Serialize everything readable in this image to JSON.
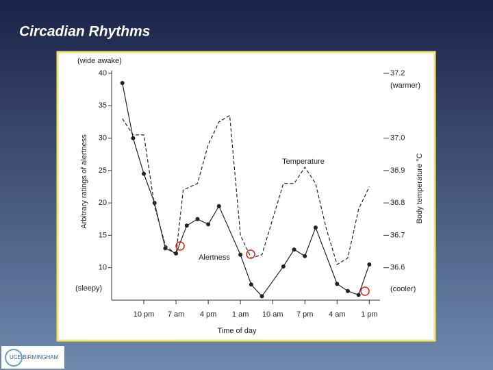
{
  "slide_title": "Circadian Rhythms",
  "logo": "UCE BIRMINGHAM",
  "chart_data": {
    "type": "line",
    "xlabel": "Time of day",
    "ylabel": "Arbitrary ratings of alertness",
    "y2label": "Body temperature °C",
    "annotations": [
      "(wide awake)",
      "(sleepy)",
      "(warmer)",
      "(cooler)"
    ],
    "xlim": [
      0,
      75
    ],
    "xticks": [
      {
        "value": 9,
        "label": "10 pm"
      },
      {
        "value": 18,
        "label": "7 am"
      },
      {
        "value": 27,
        "label": "4 pm"
      },
      {
        "value": 36,
        "label": "1 am"
      },
      {
        "value": 45,
        "label": "10 am"
      },
      {
        "value": 54,
        "label": "7 pm"
      },
      {
        "value": 63,
        "label": "4 am"
      },
      {
        "value": 72,
        "label": "1 pm"
      }
    ],
    "ylim": [
      5,
      40
    ],
    "yticks": [
      10,
      15,
      20,
      25,
      30,
      35,
      40
    ],
    "y2lim": [
      36.5,
      37.2
    ],
    "y2ticks": [
      36.6,
      36.7,
      36.8,
      36.9,
      {
        "value": 37,
        "label": "37.0"
      },
      37.2
    ],
    "series": [
      {
        "name": "Alertness",
        "color": "#222222",
        "dashed": false,
        "markers": true,
        "x": [
          3,
          6,
          9,
          12,
          15,
          18,
          21,
          24,
          27,
          30,
          36,
          39,
          42,
          48,
          51,
          54,
          57,
          63,
          66,
          69,
          72
        ],
        "values": [
          38.5,
          30,
          24.5,
          20,
          13,
          12.2,
          16.5,
          17.5,
          16.7,
          19.5,
          12,
          7.4,
          5.6,
          10.2,
          12.8,
          11.8,
          16.2,
          7.5,
          6.4,
          5.8,
          10.5
        ]
      },
      {
        "name": "Temperature",
        "color": "#222222",
        "dashed": true,
        "markers": false,
        "axis": "y2",
        "x": [
          3,
          6,
          9,
          12,
          15,
          18,
          20,
          24,
          27,
          30,
          33,
          36,
          39,
          42,
          48,
          51,
          54,
          57,
          60,
          63,
          66,
          69,
          72
        ],
        "values": [
          37.06,
          37.01,
          37.01,
          36.79,
          36.67,
          36.64,
          36.84,
          36.86,
          36.98,
          37.05,
          37.07,
          36.7,
          36.63,
          36.64,
          36.86,
          36.86,
          36.91,
          36.86,
          36.72,
          36.61,
          36.63,
          36.78,
          36.85
        ]
      }
    ]
  }
}
